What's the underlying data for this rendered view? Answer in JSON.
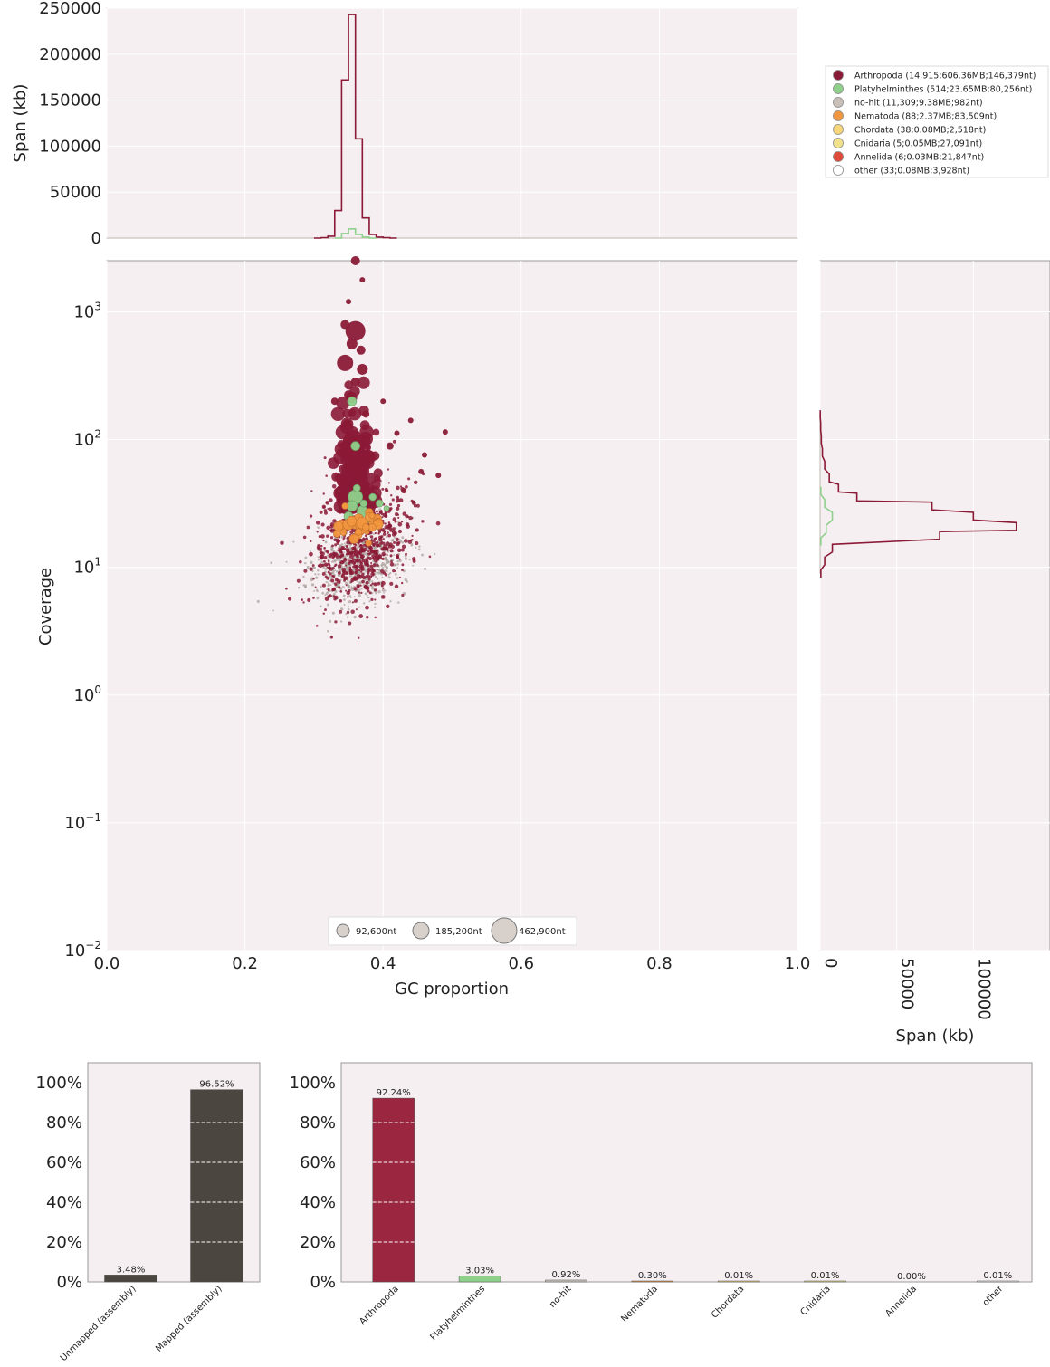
{
  "chart_data": [
    {
      "id": "gc_span_hist",
      "type": "line",
      "ylabel": "Span (kb)",
      "xlim": [
        0.0,
        1.0
      ],
      "ylim": [
        0,
        250000
      ],
      "yticks": [
        "0",
        "50000",
        "100000",
        "150000",
        "200000",
        "250000"
      ],
      "series": [
        {
          "name": "Arthropoda",
          "color": "#8b1a36",
          "x": [
            0.3,
            0.31,
            0.32,
            0.33,
            0.34,
            0.35,
            0.36,
            0.37,
            0.38,
            0.39,
            0.4,
            0.41
          ],
          "values": [
            0,
            500,
            2000,
            30000,
            172000,
            243000,
            108000,
            22000,
            4000,
            1000,
            500,
            0
          ]
        },
        {
          "name": "Platyhelminthes",
          "color": "#8fd18b",
          "x": [
            0.33,
            0.34,
            0.35,
            0.36,
            0.37,
            0.38
          ],
          "values": [
            0,
            5000,
            10000,
            4000,
            1000,
            0
          ]
        }
      ]
    },
    {
      "id": "blob_scatter",
      "type": "scatter",
      "xlabel": "GC proportion",
      "ylabel": "Coverage",
      "xlim": [
        0.0,
        1.0
      ],
      "ylim_log10": [
        -2,
        3.4
      ],
      "xticks": [
        "0.0",
        "0.2",
        "0.4",
        "0.6",
        "0.8",
        "1.0"
      ],
      "yticks": [
        {
          "base": "10",
          "exp": "−2",
          "value": -2
        },
        {
          "base": "10",
          "exp": "−1",
          "value": -1
        },
        {
          "base": "10",
          "exp": "0",
          "value": 0
        },
        {
          "base": "10",
          "exp": "1",
          "value": 1
        },
        {
          "base": "10",
          "exp": "2",
          "value": 2
        },
        {
          "base": "10",
          "exp": "3",
          "value": 3
        }
      ],
      "size_legend": [
        "92,600nt",
        "185,200nt",
        "462,900nt"
      ],
      "legend": [
        {
          "label": "Arthropoda (14,915;606.36MB;146,379nt)",
          "color": "#8b1a36"
        },
        {
          "label": "Platyhelminthes (514;23.65MB;80,256nt)",
          "color": "#8fd18b"
        },
        {
          "label": "no-hit (11,309;9.38MB;982nt)",
          "color": "#c9c1b9"
        },
        {
          "label": "Nematoda (88;2.37MB;83,509nt)",
          "color": "#f2963f"
        },
        {
          "label": "Chordata (38;0.08MB;2,518nt)",
          "color": "#f7d77a"
        },
        {
          "label": "Cnidaria (5;0.05MB;27,091nt)",
          "color": "#efe28a"
        },
        {
          "label": "Annelida (6;0.03MB;21,847nt)",
          "color": "#e04a3a"
        },
        {
          "label": "other (33;0.08MB;3,928nt)",
          "color": "#ffffff"
        }
      ],
      "legend_placement": "top-right",
      "series": [
        {
          "name": "Arthropoda",
          "center_gc": 0.36,
          "center_log_cov": 1.5
        },
        {
          "name": "no-hit",
          "center_gc": 0.36,
          "center_log_cov": 1.05
        },
        {
          "name": "Platyhelminthes",
          "center_gc": 0.36,
          "center_log_cov": 1.45
        },
        {
          "name": "Nematoda",
          "center_gc": 0.365,
          "center_log_cov": 1.35
        }
      ]
    },
    {
      "id": "cov_span_hist",
      "type": "line",
      "xlabel": "Span (kb)",
      "xticks": [
        "0",
        "50000",
        "100000"
      ],
      "series": [
        {
          "name": "Arthropoda",
          "color": "#8b1a36",
          "log_cov": [
            0.95,
            1.05,
            1.15,
            1.25,
            1.32,
            1.4,
            1.48,
            1.55,
            1.62,
            1.7,
            1.8,
            1.9,
            2.0,
            2.1,
            2.2
          ],
          "values": [
            500,
            3000,
            8000,
            78000,
            128000,
            100000,
            73000,
            24000,
            12000,
            6000,
            3000,
            1500,
            800,
            400,
            100
          ]
        },
        {
          "name": "Platyhelminthes",
          "color": "#8fd18b",
          "log_cov": [
            1.2,
            1.3,
            1.4,
            1.5,
            1.6
          ],
          "values": [
            500,
            4000,
            8000,
            3000,
            500
          ]
        }
      ]
    },
    {
      "id": "mapped_bar",
      "type": "bar",
      "categories": [
        "Unmapped (assembly)",
        "Mapped (assembly)"
      ],
      "values": [
        3.48,
        96.52
      ],
      "labels": [
        "3.48%",
        "96.52%"
      ],
      "color": "#4b463f",
      "yticks": [
        "0%",
        "20%",
        "40%",
        "60%",
        "80%",
        "100%"
      ]
    },
    {
      "id": "taxa_bar",
      "type": "bar",
      "categories": [
        "Arthropoda",
        "Platyhelminthes",
        "no-hit",
        "Nematoda",
        "Chordata",
        "Cnidaria",
        "Annelida",
        "other"
      ],
      "values": [
        92.24,
        3.03,
        0.92,
        0.3,
        0.01,
        0.01,
        0.0,
        0.01
      ],
      "labels": [
        "92.24%",
        "3.03%",
        "0.92%",
        "0.30%",
        "0.01%",
        "0.01%",
        "0.00%",
        "0.01%"
      ],
      "colors": [
        "#9b2640",
        "#8fd18b",
        "#c9c1b9",
        "#f2963f",
        "#f7d77a",
        "#efe28a",
        "#e04a3a",
        "#ffffff"
      ],
      "yticks": [
        "0%",
        "20%",
        "40%",
        "60%",
        "80%",
        "100%"
      ]
    }
  ]
}
